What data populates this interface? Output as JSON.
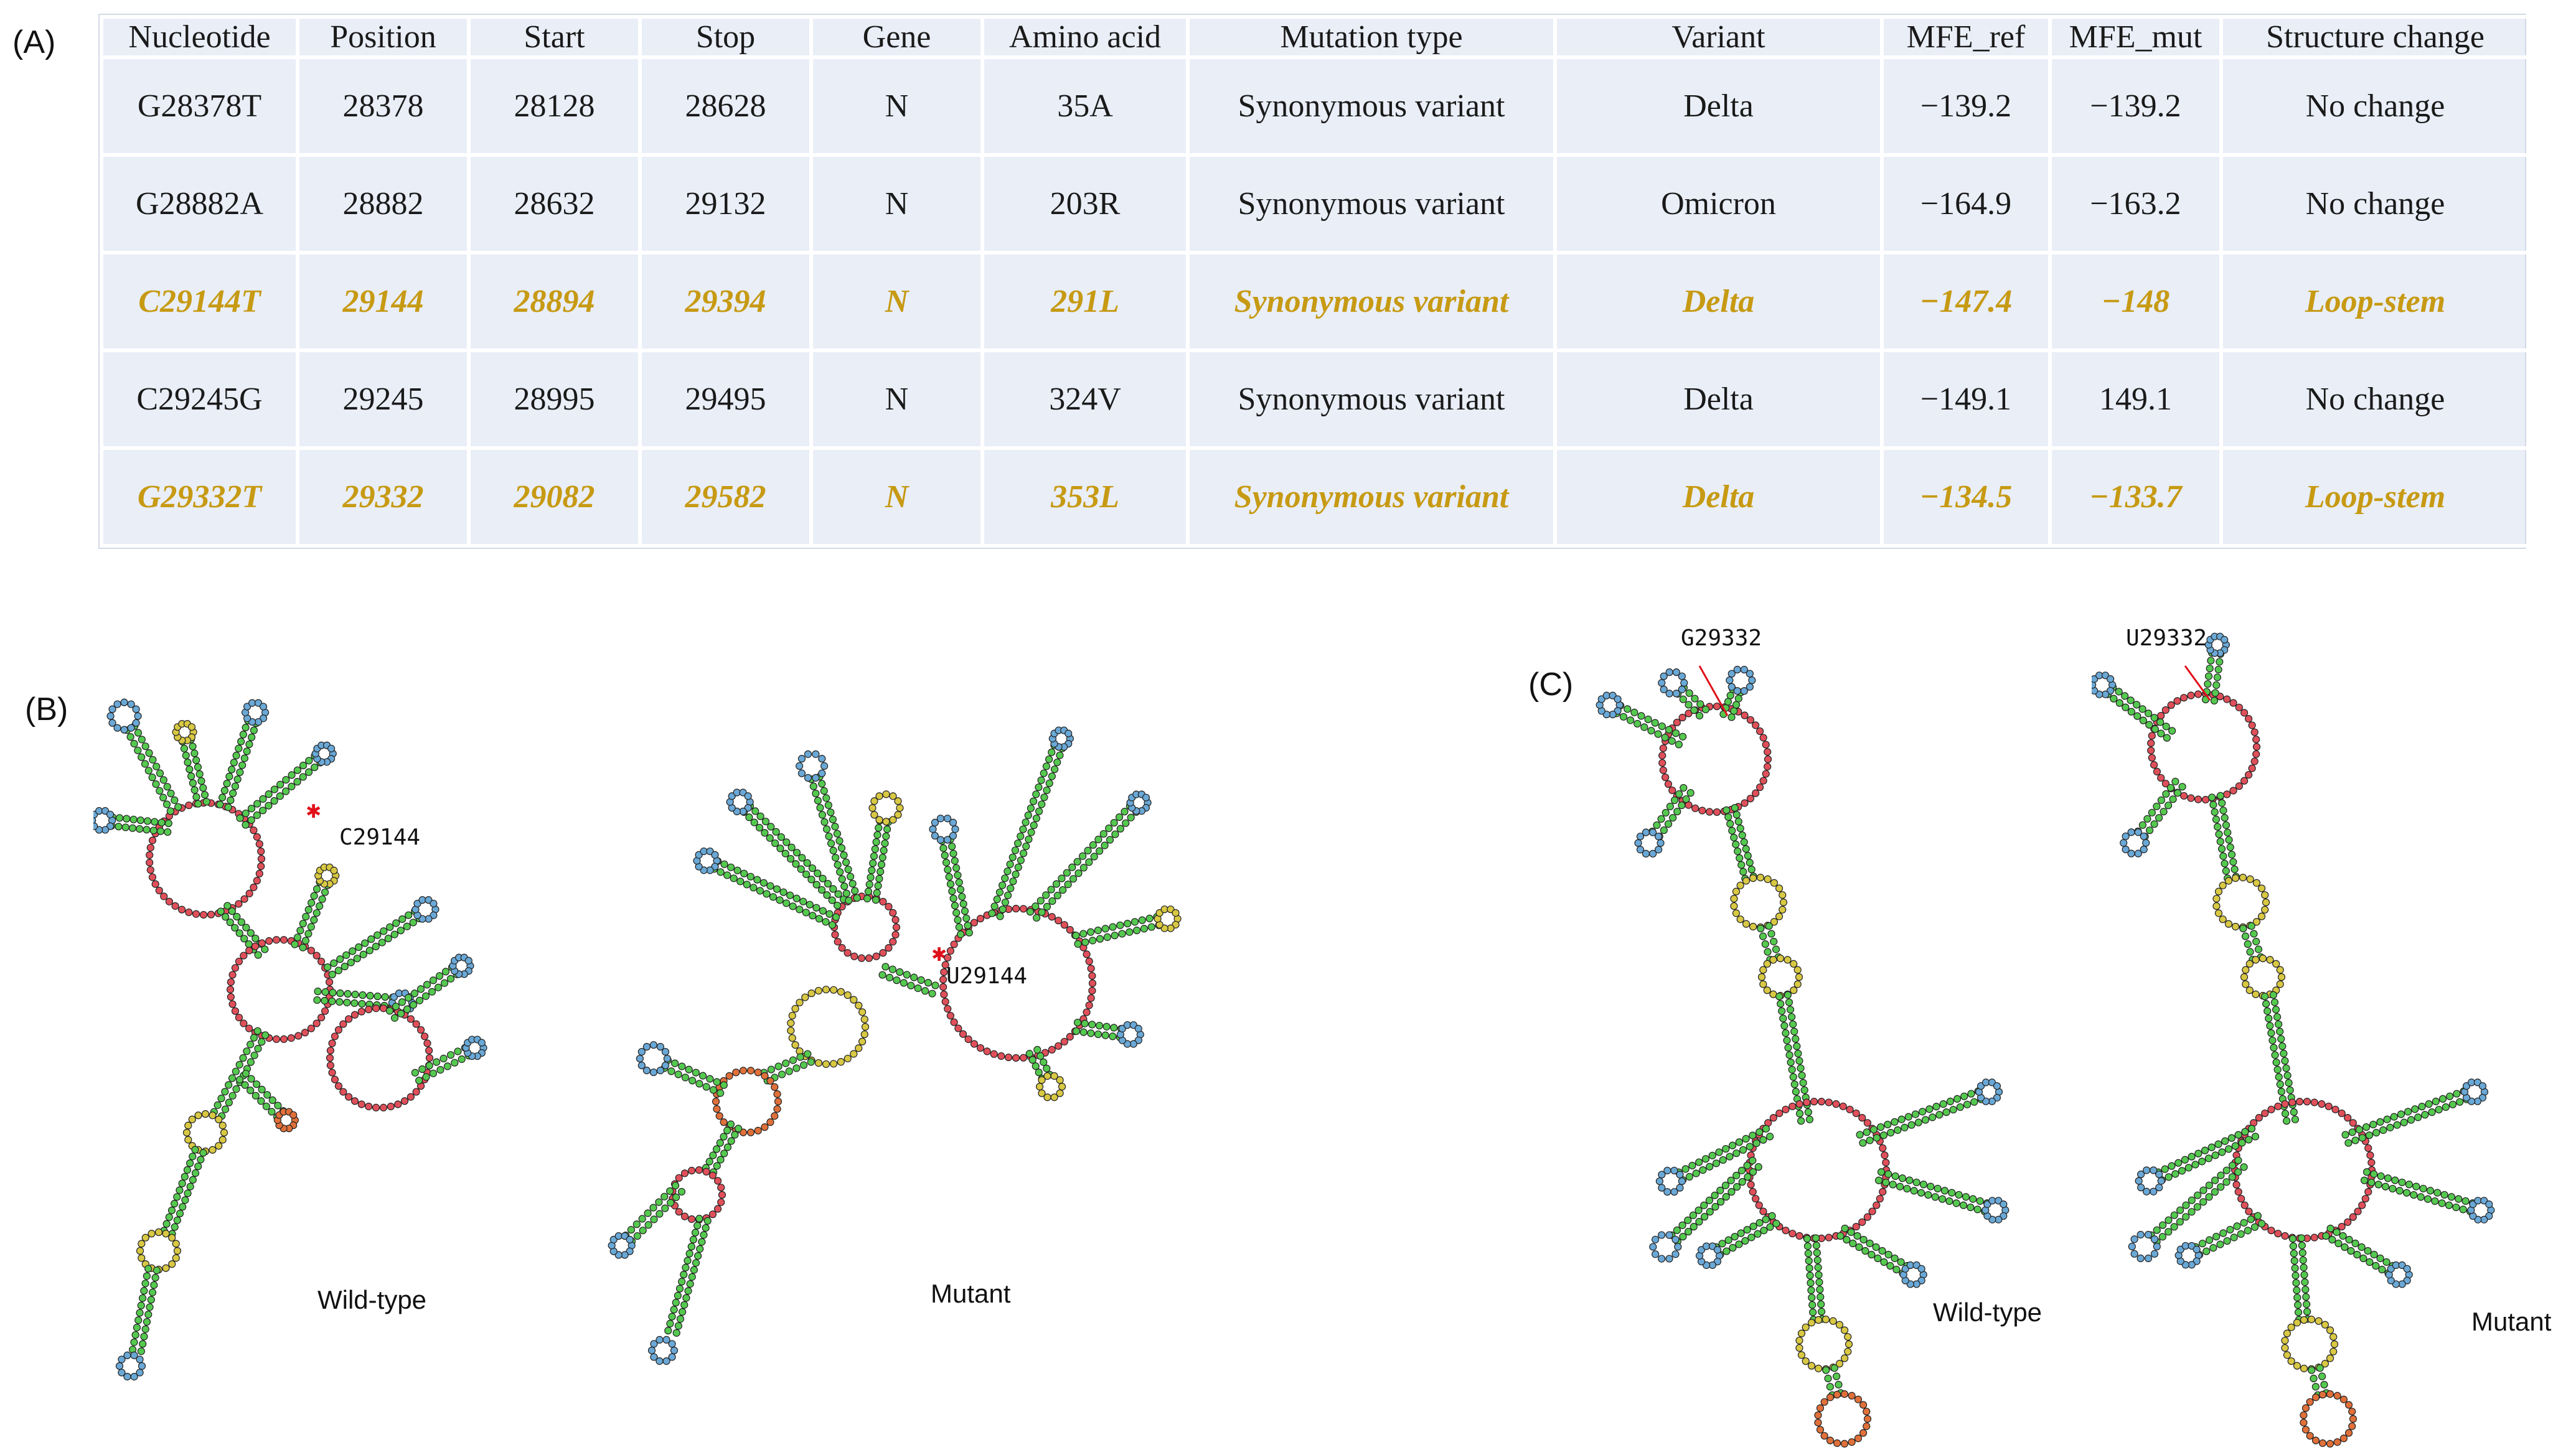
{
  "labels": {
    "a": "(A)",
    "b": "(B)",
    "c": "(C)"
  },
  "table": {
    "headers": [
      "Nucleotide",
      "Position",
      "Start",
      "Stop",
      "Gene",
      "Amino acid",
      "Mutation type",
      "Variant",
      "MFE_ref",
      "MFE_mut",
      "Structure change"
    ],
    "rows": [
      {
        "highlight": false,
        "cells": [
          "G28378T",
          "28378",
          "28128",
          "28628",
          "N",
          "35A",
          "Synonymous variant",
          "Delta",
          "−139.2",
          "−139.2",
          "No change"
        ]
      },
      {
        "highlight": false,
        "cells": [
          "G28882A",
          "28882",
          "28632",
          "29132",
          "N",
          "203R",
          "Synonymous variant",
          "Omicron",
          "−164.9",
          "−163.2",
          "No change"
        ]
      },
      {
        "highlight": true,
        "cells": [
          "C29144T",
          "29144",
          "28894",
          "29394",
          "N",
          "291L",
          "Synonymous variant",
          "Delta",
          "−147.4",
          "−148",
          "Loop-stem"
        ]
      },
      {
        "highlight": false,
        "cells": [
          "C29245G",
          "29245",
          "28995",
          "29495",
          "N",
          "324V",
          "Synonymous variant",
          "Delta",
          "−149.1",
          "149.1",
          "No change"
        ]
      },
      {
        "highlight": true,
        "cells": [
          "G29332T",
          "29332",
          "29082",
          "29582",
          "N",
          "353L",
          "Synonymous variant",
          "Delta",
          "−134.5",
          "−133.7",
          "Loop-stem"
        ]
      }
    ]
  },
  "panel_b": {
    "wild_label": "Wild-type",
    "mutant_label": "Mutant",
    "wild_site": "C29144",
    "mutant_site": "U29144"
  },
  "panel_c": {
    "wild_label": "Wild-type",
    "mutant_label": "Mutant",
    "wild_site": "G29332",
    "mutant_site": "U29332"
  },
  "colors": {
    "stem": "#55c94f",
    "multiloop": "#e0505a",
    "hairpin": "#6aa8d6",
    "interior": "#d8c843",
    "tail": "#e0703a",
    "highlight_text": "#c79a13",
    "marker": "#e0101a"
  }
}
